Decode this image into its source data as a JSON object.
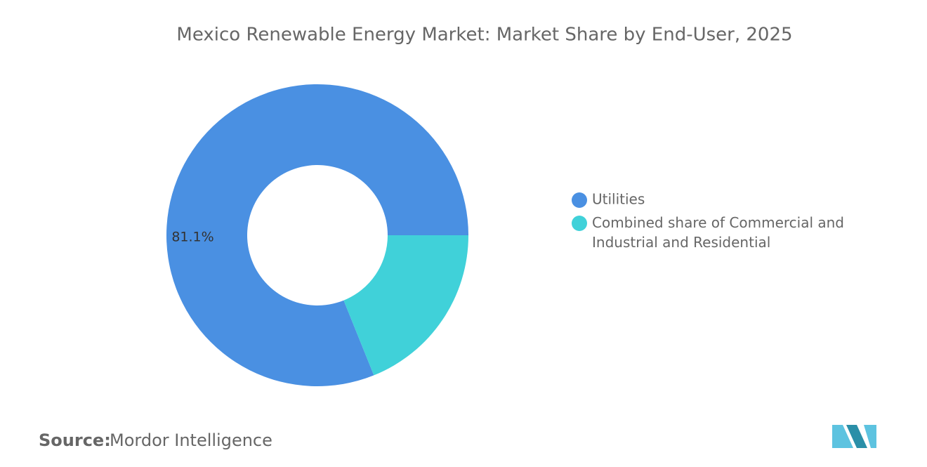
{
  "chart_data": {
    "type": "donut",
    "title": "Mexico Renewable Energy Market: Market Share by End-User, 2025",
    "categories": [
      "Utilities",
      "Combined share of Commercial and Industrial and Residential"
    ],
    "values": [
      81.1,
      18.9
    ],
    "value_labels": [
      "81.1%",
      null
    ],
    "colors": [
      "#4a90e2",
      "#40d1d9"
    ],
    "legend": "right",
    "source": {
      "label": "Source:",
      "text": "Mordor Intelligence"
    }
  }
}
